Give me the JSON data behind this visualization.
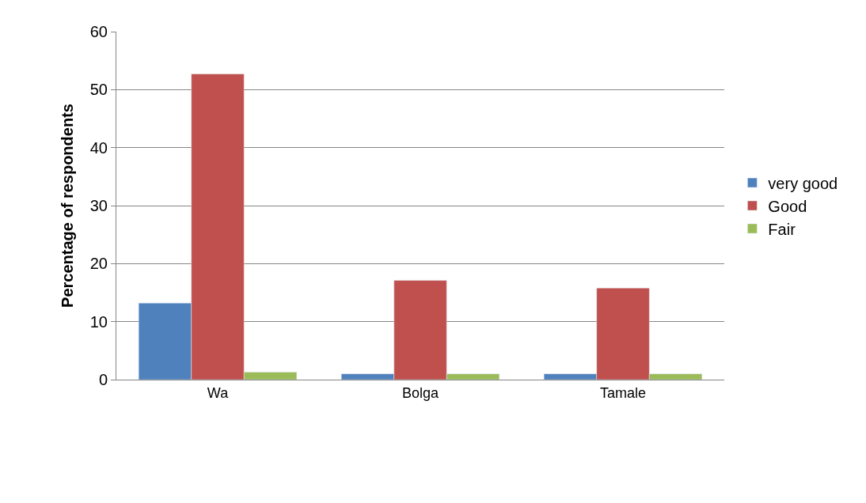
{
  "chart_data": {
    "type": "bar",
    "ylabel": "Percentage of respondents",
    "categories": [
      "Wa",
      "Bolga",
      "Tamale"
    ],
    "series": [
      {
        "name": "very good",
        "color": "#4f81bd",
        "values": [
          13.2,
          1.0,
          1.0
        ]
      },
      {
        "name": "Good",
        "color": "#c0504d",
        "values": [
          52.7,
          17.1,
          15.8
        ]
      },
      {
        "name": "Fair",
        "color": "#9bbb59",
        "values": [
          1.3,
          1.0,
          1.0
        ]
      }
    ],
    "ylim": [
      0,
      60
    ],
    "yticks": [
      0,
      10,
      20,
      30,
      40,
      50,
      60
    ],
    "grid": "y",
    "legend": "right"
  }
}
